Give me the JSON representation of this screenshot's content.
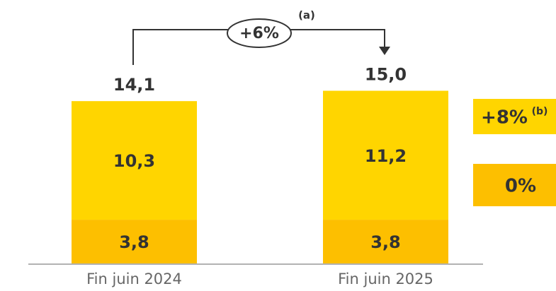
{
  "chart_data": {
    "type": "bar",
    "stacked": true,
    "categories": [
      "Fin juin 2024",
      "Fin juin 2025"
    ],
    "series": [
      {
        "color": "#fdbf00",
        "values": [
          3.8,
          3.8
        ],
        "value_labels": [
          "3,8",
          "3,8"
        ],
        "change": "0%"
      },
      {
        "color": "#ffd500",
        "values": [
          10.3,
          11.2
        ],
        "value_labels": [
          "10,3",
          "11,2"
        ],
        "change": "+8%",
        "change_note": "(b)"
      }
    ],
    "totals": [
      14.1,
      15.0
    ],
    "total_labels": [
      "14,1",
      "15,0"
    ],
    "total_change": "+6%",
    "total_change_note": "(a)"
  }
}
